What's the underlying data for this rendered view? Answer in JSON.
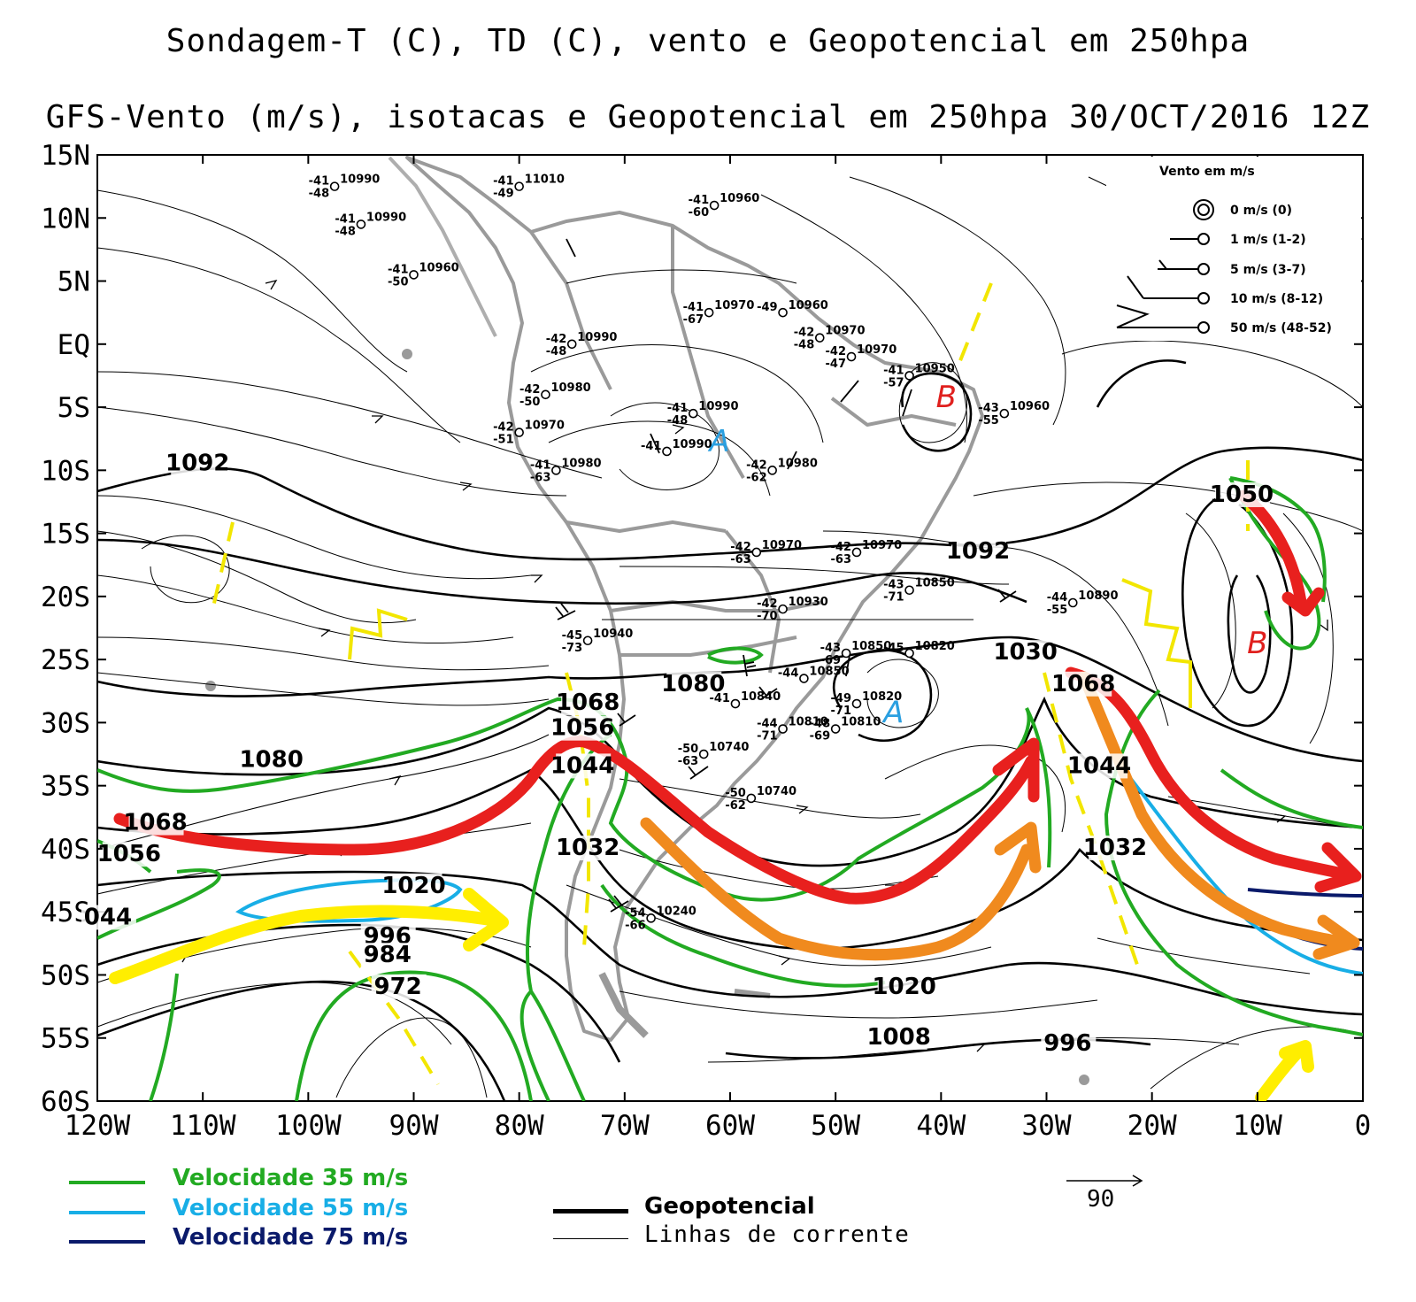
{
  "title_line1": "Sondagem-T (C), TD (C), vento e Geopotencial em 250hpa",
  "title_line2": "GFS-Vento (m/s), isotacas e Geopotencial em 250hpa 30/OCT/2016 12Z",
  "map": {
    "lon_min": -120,
    "lon_max": 0,
    "lat_min": -60,
    "lat_max": 15,
    "lat_ticks": [
      "15N",
      "10N",
      "5N",
      "EQ",
      "5S",
      "10S",
      "15S",
      "20S",
      "25S",
      "30S",
      "35S",
      "40S",
      "45S",
      "50S",
      "55S",
      "60S"
    ],
    "lon_ticks": [
      "120W",
      "110W",
      "100W",
      "90W",
      "80W",
      "70W",
      "60W",
      "50W",
      "40W",
      "30W",
      "20W",
      "10W",
      "0"
    ]
  },
  "geopotential_labels": [
    {
      "text": "1092",
      "lon": -110.5,
      "lat": -10
    },
    {
      "text": "1092",
      "lon": -36.5,
      "lat": -17
    },
    {
      "text": "1080",
      "lon": -103.5,
      "lat": -33.5
    },
    {
      "text": "1080",
      "lon": -63.5,
      "lat": -27.5
    },
    {
      "text": "1068",
      "lon": -114.5,
      "lat": -38.5
    },
    {
      "text": "1068",
      "lon": -73.5,
      "lat": -29
    },
    {
      "text": "1056",
      "lon": -74,
      "lat": -31
    },
    {
      "text": "1044",
      "lon": -74,
      "lat": -34
    },
    {
      "text": "1056",
      "lon": -117,
      "lat": -41
    },
    {
      "text": "1032",
      "lon": -73.5,
      "lat": -40.5
    },
    {
      "text": "1032",
      "lon": -23.5,
      "lat": -40.5
    },
    {
      "text": "1030",
      "lon": -32,
      "lat": -25
    },
    {
      "text": "1068",
      "lon": -26.5,
      "lat": -27.5
    },
    {
      "text": "1044",
      "lon": -25,
      "lat": -34
    },
    {
      "text": "1050",
      "lon": -11.5,
      "lat": -12.5
    },
    {
      "text": "1020",
      "lon": -90,
      "lat": -43.5
    },
    {
      "text": "996",
      "lon": -92.5,
      "lat": -47.5
    },
    {
      "text": "984",
      "lon": -92.5,
      "lat": -49
    },
    {
      "text": "972",
      "lon": -91.5,
      "lat": -51.5
    },
    {
      "text": "1020",
      "lon": -43.5,
      "lat": -51.5
    },
    {
      "text": "1008",
      "lon": -44,
      "lat": -55.5
    },
    {
      "text": "996",
      "lon": -28,
      "lat": -56
    },
    {
      "text": "044",
      "lon": -119,
      "lat": -46
    }
  ],
  "pressure_centers": [
    {
      "text": "A",
      "lon": -61,
      "lat": -8.5,
      "color": "#2a9fe0"
    },
    {
      "text": "A",
      "lon": -44.5,
      "lat": -30,
      "color": "#2a9fe0"
    },
    {
      "text": "B",
      "lon": -39.5,
      "lat": -5,
      "color": "#e0201e"
    },
    {
      "text": "B",
      "lon": -10,
      "lat": -24.5,
      "color": "#e0201e"
    }
  ],
  "stations": [
    {
      "t": "-41",
      "td": "-48",
      "z": "10990",
      "lon": -97.5,
      "lat": 12.5
    },
    {
      "t": "-41",
      "td": "-49",
      "z": "11010",
      "lon": -80,
      "lat": 12.5
    },
    {
      "t": "-41",
      "td": "-60",
      "z": "10960",
      "lon": -61.5,
      "lat": 11
    },
    {
      "t": "-41",
      "td": "-48",
      "z": "10990",
      "lon": -95,
      "lat": 9.5
    },
    {
      "t": "-41",
      "td": "-50",
      "z": "10960",
      "lon": -90,
      "lat": 5.5
    },
    {
      "t": "-41",
      "td": "-67",
      "z": "10970",
      "lon": -62,
      "lat": 2.5
    },
    {
      "t": "-49",
      "td": "",
      "z": "10960",
      "lon": -55,
      "lat": 2.5
    },
    {
      "t": "-42",
      "td": "-48",
      "z": "10990",
      "lon": -75,
      "lat": 0
    },
    {
      "t": "-42",
      "td": "-48",
      "z": "10970",
      "lon": -51.5,
      "lat": 0.5
    },
    {
      "t": "-42",
      "td": "-47",
      "z": "10970",
      "lon": -48.5,
      "lat": -1
    },
    {
      "t": "-41",
      "td": "-57",
      "z": "10950",
      "lon": -43,
      "lat": -2.5
    },
    {
      "t": "-42",
      "td": "-50",
      "z": "10980",
      "lon": -77.5,
      "lat": -4
    },
    {
      "t": "-41",
      "td": "-48",
      "z": "10990",
      "lon": -63.5,
      "lat": -5.5
    },
    {
      "t": "-43",
      "td": "-55",
      "z": "10960",
      "lon": -34,
      "lat": -5.5
    },
    {
      "t": "-42",
      "td": "-51",
      "z": "10970",
      "lon": -80,
      "lat": -7
    },
    {
      "t": "-41",
      "td": "-63",
      "z": "10980",
      "lon": -76.5,
      "lat": -10
    },
    {
      "t": "-42",
      "td": "-62",
      "z": "10980",
      "lon": -56,
      "lat": -10
    },
    {
      "t": "-41",
      "td": "",
      "z": "10990",
      "lon": -66,
      "lat": -8.5
    },
    {
      "t": "-42",
      "td": "-63",
      "z": "10970",
      "lon": -57.5,
      "lat": -16.5
    },
    {
      "t": "-42",
      "td": "-63",
      "z": "10970",
      "lon": -48,
      "lat": -16.5
    },
    {
      "t": "-43",
      "td": "-71",
      "z": "10850",
      "lon": -43,
      "lat": -19.5
    },
    {
      "t": "-42",
      "td": "-70",
      "z": "10930",
      "lon": -55,
      "lat": -21
    },
    {
      "t": "-44",
      "td": "-55",
      "z": "10890",
      "lon": -27.5,
      "lat": -20.5
    },
    {
      "t": "-45",
      "td": "-73",
      "z": "10940",
      "lon": -73.5,
      "lat": -23.5
    },
    {
      "t": "-43",
      "td": "-69",
      "z": "10850",
      "lon": -49,
      "lat": -24.5
    },
    {
      "t": "-45",
      "td": "",
      "z": "10820",
      "lon": -43,
      "lat": -24.5
    },
    {
      "t": "-44",
      "td": "",
      "z": "10850",
      "lon": -53,
      "lat": -26.5
    },
    {
      "t": "-41",
      "td": "",
      "z": "10840",
      "lon": -59.5,
      "lat": -28.5
    },
    {
      "t": "-49",
      "td": "-71",
      "z": "10820",
      "lon": -48,
      "lat": -28.5
    },
    {
      "t": "-44",
      "td": "-71",
      "z": "10810",
      "lon": -55,
      "lat": -30.5
    },
    {
      "t": "-48",
      "td": "-69",
      "z": "10810",
      "lon": -50,
      "lat": -30.5
    },
    {
      "t": "-50",
      "td": "-63",
      "z": "10740",
      "lon": -62.5,
      "lat": -32.5
    },
    {
      "t": "-50",
      "td": "-62",
      "z": "10740",
      "lon": -58,
      "lat": -36
    },
    {
      "t": "-54",
      "td": "-66",
      "z": "10240",
      "lon": -67.5,
      "lat": -45.5
    }
  ],
  "wind_legend": {
    "title": "Vento em m/s",
    "items": [
      "0 m/s (0)",
      "1 m/s (1-2)",
      "5 m/s (3-7)",
      "10 m/s (8-12)",
      "50 m/s (48-52)"
    ]
  },
  "isotach_legend": [
    {
      "label": "Velocidade 35 m/s",
      "color": "#22aa22"
    },
    {
      "label": "Velocidade 55 m/s",
      "color": "#18aee6"
    },
    {
      "label": "Velocidade 75 m/s",
      "color": "#0a1a6a"
    }
  ],
  "line_legend": {
    "geopotential": "Geopotencial",
    "streamlines": "Linhas de corrente"
  },
  "vector_scale": "90",
  "colors": {
    "isotach_35": "#22aa22",
    "isotach_55": "#18aee6",
    "isotach_75": "#0a1a6a",
    "jet_red": "#e8201e",
    "jet_orange": "#f08a1e",
    "jet_yellow": "#ffee00",
    "trough_yellow": "#f2e600",
    "coast_gray": "#9a9a9a",
    "high": "#2a9fe0",
    "low": "#e0201e"
  }
}
